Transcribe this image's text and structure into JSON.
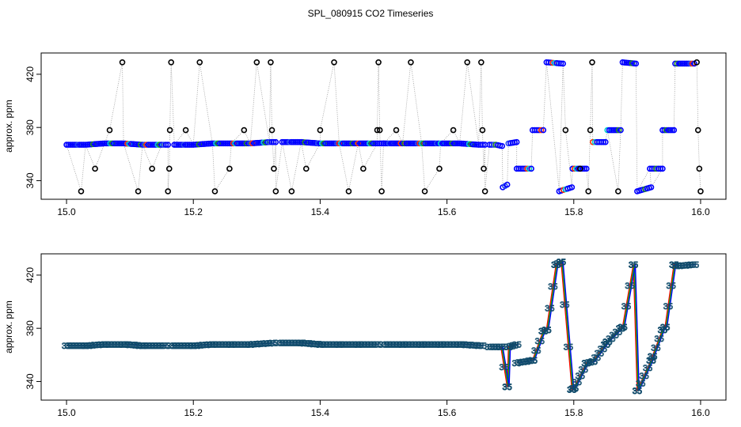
{
  "chart_data": [
    {
      "type": "scatter",
      "title": "SPL_080915  CO2 Timeseries",
      "xlabel": "",
      "ylabel": "approx. ppm",
      "xlim": [
        14.96,
        16.04
      ],
      "ylim": [
        326,
        436
      ],
      "xticks": [
        "15.0",
        "15.2",
        "15.4",
        "15.6",
        "15.8",
        "16.0"
      ],
      "yticks": [
        "340",
        "380",
        "420"
      ],
      "series": [
        {
          "name": "main trace",
          "segments": [
            {
              "x": [
                15.0,
                15.03,
                15.06,
                15.09,
                15.12,
                15.15,
                15.16
              ],
              "y": [
                367,
                367,
                368,
                368,
                367,
                367,
                367
              ]
            },
            {
              "x": [
                15.17,
                15.2,
                15.23,
                15.26,
                15.29,
                15.32,
                15.33
              ],
              "y": [
                367,
                367,
                368,
                368,
                368,
                369,
                369
              ]
            },
            {
              "x": [
                15.34,
                15.37,
                15.4,
                15.43,
                15.46,
                15.49,
                15.5
              ],
              "y": [
                369,
                369,
                368,
                368,
                368,
                368,
                368
              ]
            },
            {
              "x": [
                15.5,
                15.53,
                15.56,
                15.59,
                15.62,
                15.65,
                15.66
              ],
              "y": [
                368,
                368,
                368,
                368,
                368,
                367,
                367
              ]
            },
            {
              "x": [
                15.667,
                15.677,
                15.687
              ],
              "y": [
                367,
                367,
                366
              ]
            },
            {
              "x": [
                15.688,
                15.695
              ],
              "y": [
                335,
                337
              ]
            },
            {
              "x": [
                15.697,
                15.71
              ],
              "y": [
                368,
                369
              ]
            },
            {
              "x": [
                15.71,
                15.733
              ],
              "y": [
                349,
                349
              ]
            },
            {
              "x": [
                15.735,
                15.752
              ],
              "y": [
                378,
                378
              ]
            },
            {
              "x": [
                15.757,
                15.783
              ],
              "y": [
                429,
                428
              ]
            },
            {
              "x": [
                15.777,
                15.797
              ],
              "y": [
                332,
                335
              ]
            },
            {
              "x": [
                15.798,
                15.82
              ],
              "y": [
                349,
                349
              ]
            },
            {
              "x": [
                15.83,
                15.85
              ],
              "y": [
                369,
                369
              ]
            },
            {
              "x": [
                15.853,
                15.874
              ],
              "y": [
                378,
                378
              ]
            },
            {
              "x": [
                15.877,
                15.898
              ],
              "y": [
                429,
                428
              ]
            },
            {
              "x": [
                15.9,
                15.922
              ],
              "y": [
                332,
                335
              ]
            },
            {
              "x": [
                15.92,
                15.94
              ],
              "y": [
                349,
                349
              ]
            },
            {
              "x": [
                15.94,
                15.958
              ],
              "y": [
                378,
                378
              ]
            },
            {
              "x": [
                15.96,
                15.99
              ],
              "y": [
                428,
                428
              ]
            }
          ]
        },
        {
          "name": "outliers",
          "x": [
            15.023,
            15.045,
            15.068,
            15.088,
            15.113,
            15.135,
            15.16,
            15.162,
            15.163,
            15.165,
            15.188,
            15.21,
            15.234,
            15.257,
            15.28,
            15.3,
            15.322,
            15.324,
            15.327,
            15.33,
            15.355,
            15.378,
            15.4,
            15.422,
            15.445,
            15.468,
            15.49,
            15.492,
            15.494,
            15.497,
            15.52,
            15.543,
            15.565,
            15.588,
            15.61,
            15.632,
            15.654,
            15.656,
            15.658,
            15.66,
            15.787,
            15.81,
            15.823,
            15.826,
            15.829,
            15.87,
            15.994,
            15.996,
            15.998,
            16.0
          ],
          "y": [
            332,
            349,
            378,
            429,
            332,
            349,
            332,
            349,
            378,
            429,
            378,
            429,
            332,
            349,
            378,
            429,
            429,
            378,
            349,
            332,
            332,
            349,
            378,
            429,
            332,
            349,
            378,
            429,
            378,
            332,
            378,
            429,
            332,
            349,
            378,
            429,
            429,
            378,
            349,
            332,
            378,
            349,
            332,
            378,
            429,
            332,
            429,
            378,
            349,
            332
          ]
        }
      ]
    },
    {
      "type": "scatter",
      "title": "",
      "xlabel": "",
      "ylabel": "approx. ppm",
      "xlim": [
        14.96,
        16.04
      ],
      "ylim": [
        326,
        436
      ],
      "xticks": [
        "15.0",
        "15.2",
        "15.4",
        "15.6",
        "15.8",
        "16.0"
      ],
      "yticks": [
        "340",
        "380",
        "420"
      ],
      "point_label": "35",
      "series": [
        {
          "name": "smoothed trace",
          "segments": [
            {
              "x": [
                15.0,
                15.03,
                15.06,
                15.09,
                15.12,
                15.155
              ],
              "y": [
                367,
                367,
                368,
                368,
                367,
                367
              ]
            },
            {
              "x": [
                15.165,
                15.2,
                15.23,
                15.26,
                15.29,
                15.325
              ],
              "y": [
                367,
                367,
                368,
                368,
                368,
                369
              ]
            },
            {
              "x": [
                15.335,
                15.37,
                15.4,
                15.43,
                15.46,
                15.49
              ],
              "y": [
                369,
                369,
                368,
                368,
                368,
                368
              ]
            },
            {
              "x": [
                15.5,
                15.53,
                15.56,
                15.59,
                15.62,
                15.655
              ],
              "y": [
                368,
                368,
                368,
                368,
                368,
                367
              ]
            },
            {
              "x": [
                15.667,
                15.685,
                15.695,
                15.697,
                15.71
              ],
              "y": [
                366,
                366,
                336,
                366,
                368
              ]
            },
            {
              "x": [
                15.71,
                15.735,
                15.752,
                15.757,
                15.772,
                15.78,
                15.797,
                15.8,
                15.82,
                15.83,
                15.85,
                15.853,
                15.874,
                15.877,
                15.894,
                15.9,
                15.922,
                15.924,
                15.94,
                15.944,
                15.958,
                15.962,
                15.99
              ],
              "y": [
                354,
                356,
                378,
                379,
                428,
                430,
                334,
                335,
                354,
                355,
                368,
                370,
                380,
                381,
                428,
                333,
                356,
                359,
                379,
                381,
                428,
                427,
                428
              ]
            }
          ]
        }
      ]
    }
  ]
}
